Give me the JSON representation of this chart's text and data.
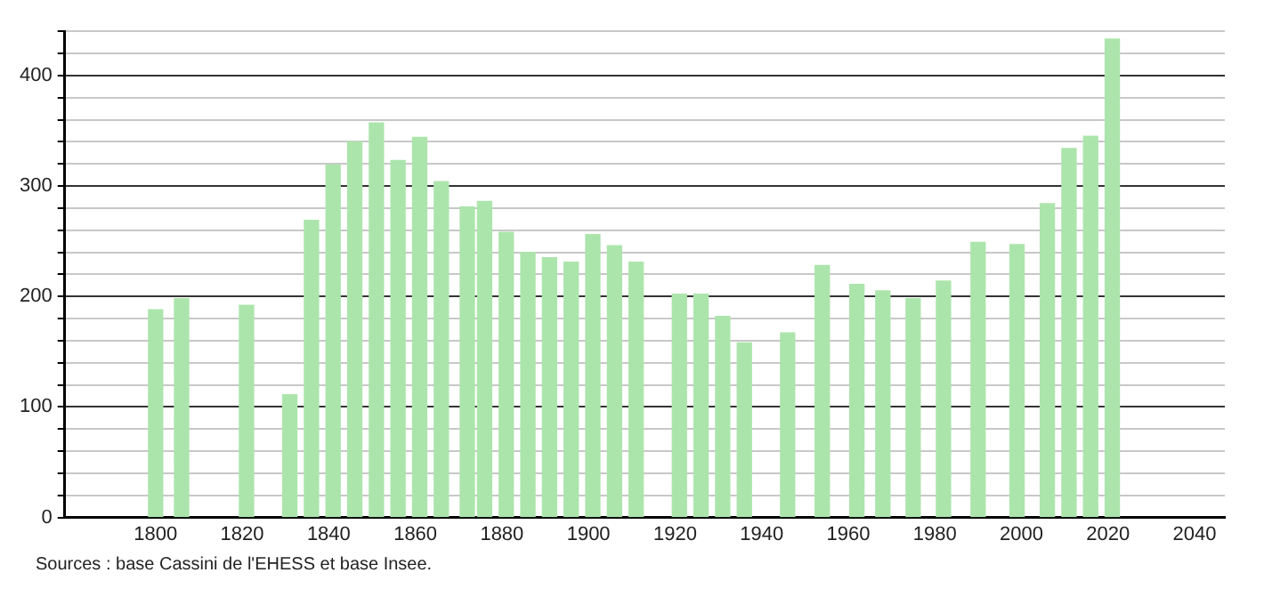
{
  "chart_data": {
    "type": "bar",
    "x": [
      1800,
      1806,
      1821,
      1831,
      1836,
      1841,
      1846,
      1851,
      1856,
      1861,
      1866,
      1872,
      1876,
      1881,
      1886,
      1891,
      1896,
      1901,
      1906,
      1911,
      1921,
      1926,
      1931,
      1936,
      1946,
      1954,
      1962,
      1968,
      1975,
      1982,
      1990,
      1999,
      2006,
      2011,
      2016,
      2021
    ],
    "values": [
      188,
      198,
      192,
      111,
      269,
      319,
      340,
      357,
      323,
      344,
      304,
      281,
      286,
      258,
      240,
      235,
      231,
      256,
      246,
      231,
      202,
      202,
      182,
      158,
      167,
      228,
      211,
      205,
      198,
      214,
      249,
      247,
      284,
      334,
      345,
      433
    ],
    "color": "#ace5ac",
    "xlim": [
      1779,
      2047
    ],
    "xticks": [
      1800,
      1820,
      1840,
      1860,
      1880,
      1900,
      1920,
      1940,
      1960,
      1980,
      2000,
      2020,
      2040
    ],
    "ylim": [
      0,
      440
    ],
    "yticks": [
      0,
      {
        "value": 20,
        "label": null
      },
      {
        "value": 40,
        "label": null
      },
      {
        "value": 60,
        "label": null
      },
      {
        "value": 80,
        "label": null
      },
      100,
      {
        "value": 120,
        "label": null
      },
      {
        "value": 140,
        "label": null
      },
      {
        "value": 160,
        "label": null
      },
      {
        "value": 180,
        "label": null
      },
      200,
      {
        "value": 220,
        "label": null
      },
      {
        "value": 240,
        "label": null
      },
      {
        "value": 260,
        "label": null
      },
      {
        "value": 280,
        "label": null
      },
      300,
      {
        "value": 320,
        "label": null
      },
      {
        "value": 340,
        "label": null
      },
      {
        "value": 360,
        "label": null
      },
      {
        "value": 380,
        "label": null
      },
      400,
      {
        "value": 420,
        "label": null
      },
      {
        "value": 440,
        "label": null
      }
    ],
    "grid": "y",
    "annotations": [
      "Sources : base Cassini de l'EHESS et base Insee."
    ]
  }
}
